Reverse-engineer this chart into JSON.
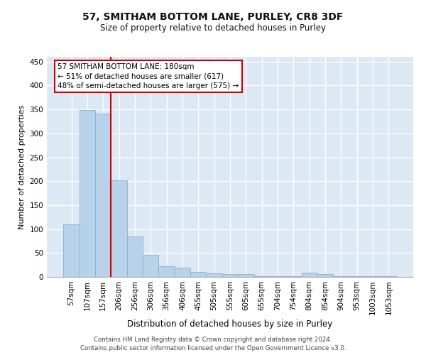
{
  "title": "57, SMITHAM BOTTOM LANE, PURLEY, CR8 3DF",
  "subtitle": "Size of property relative to detached houses in Purley",
  "xlabel": "Distribution of detached houses by size in Purley",
  "ylabel": "Number of detached properties",
  "footer_line1": "Contains HM Land Registry data © Crown copyright and database right 2024.",
  "footer_line2": "Contains public sector information licensed under the Open Government Licence v3.0.",
  "categories": [
    "57sqm",
    "107sqm",
    "157sqm",
    "206sqm",
    "256sqm",
    "306sqm",
    "356sqm",
    "406sqm",
    "455sqm",
    "505sqm",
    "555sqm",
    "605sqm",
    "655sqm",
    "704sqm",
    "754sqm",
    "804sqm",
    "854sqm",
    "904sqm",
    "953sqm",
    "1003sqm",
    "1053sqm"
  ],
  "values": [
    110,
    349,
    341,
    202,
    84,
    46,
    22,
    20,
    10,
    7,
    6,
    6,
    1,
    1,
    1,
    9,
    6,
    2,
    1,
    1,
    2
  ],
  "bar_color": "#b8d2ea",
  "bar_edge_color": "#8ab0d0",
  "bg_color": "#dce9f5",
  "grid_color": "#ffffff",
  "red_line_color": "#cc0000",
  "annotation_line1": "57 SMITHAM BOTTOM LANE: 180sqm",
  "annotation_line2": "← 51% of detached houses are smaller (617)",
  "annotation_line3": "48% of semi-detached houses are larger (575) →",
  "annotation_box_facecolor": "#ffffff",
  "annotation_box_edgecolor": "#cc0000",
  "ylim": [
    0,
    460
  ],
  "yticks": [
    0,
    50,
    100,
    150,
    200,
    250,
    300,
    350,
    400,
    450
  ],
  "title_fontsize": 10,
  "subtitle_fontsize": 8.5,
  "ylabel_fontsize": 8,
  "xlabel_fontsize": 8.5,
  "tick_fontsize": 7.5,
  "footer_fontsize": 6.2,
  "annot_fontsize": 7.5
}
